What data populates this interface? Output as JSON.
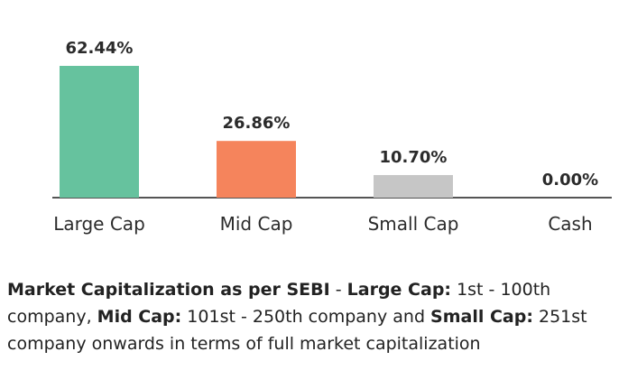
{
  "chart_data": {
    "type": "bar",
    "categories": [
      "Large Cap",
      "Mid Cap",
      "Small Cap",
      "Cash"
    ],
    "values": [
      62.44,
      26.86,
      10.7,
      0.0
    ],
    "value_labels": [
      "62.44%",
      "26.86%",
      "10.70%",
      "0.00%"
    ],
    "colors": [
      "#66c29e",
      "#f5845c",
      "#c6c6c6",
      "#c6c6c6"
    ],
    "axis_color": "#555555",
    "title": "",
    "xlabel": "",
    "ylabel": "",
    "ylim": [
      0,
      62.44
    ],
    "grid": false,
    "legend": "none"
  },
  "caption": {
    "heading": "Market Capitalization as per SEBI",
    "sep1": " - ",
    "large_label": "Large Cap:",
    "large_text": " 1st - 100th company, ",
    "mid_label": "Mid Cap:",
    "mid_text": " 101st - 250th company and ",
    "small_label": "Small Cap:",
    "small_text": " 251st company onwards in terms of full market capitalization"
  }
}
